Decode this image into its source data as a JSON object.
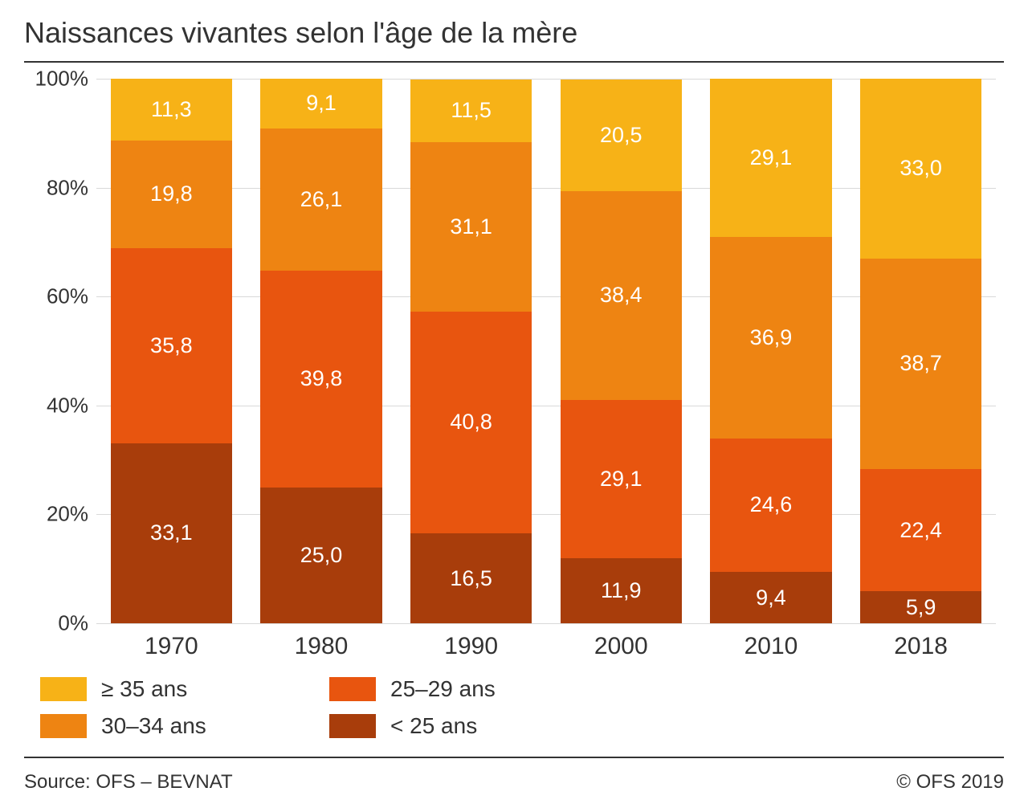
{
  "title": "Naissances vivantes selon l'âge de la mère",
  "chart": {
    "type": "stacked-bar-100",
    "background_color": "#ffffff",
    "grid_color": "#d9d9d9",
    "label_color": "#ffffff",
    "label_fontsize": 27,
    "axis_fontsize": 26,
    "xaxis_fontsize": 30,
    "y_ticks": [
      0,
      20,
      40,
      60,
      80,
      100
    ],
    "y_tick_labels": [
      "0%",
      "20%",
      "40%",
      "60%",
      "80%",
      "100%"
    ],
    "categories": [
      "1970",
      "1980",
      "1990",
      "2000",
      "2010",
      "2018"
    ],
    "series": [
      {
        "key": "lt25",
        "label": "< 25 ans",
        "color": "#a83d0b"
      },
      {
        "key": "a25_29",
        "label": "25–29 ans",
        "color": "#e8550f"
      },
      {
        "key": "a30_34",
        "label": "30–34 ans",
        "color": "#ee8412"
      },
      {
        "key": "ge35",
        "label": "≥ 35 ans",
        "color": "#f7b217"
      }
    ],
    "data": [
      {
        "lt25": 33.1,
        "a25_29": 35.8,
        "a30_34": 19.8,
        "ge35": 11.3
      },
      {
        "lt25": 25.0,
        "a25_29": 39.8,
        "a30_34": 26.1,
        "ge35": 9.1
      },
      {
        "lt25": 16.5,
        "a25_29": 40.8,
        "a30_34": 31.1,
        "ge35": 11.5
      },
      {
        "lt25": 11.9,
        "a25_29": 29.1,
        "a30_34": 38.4,
        "ge35": 20.5
      },
      {
        "lt25": 9.4,
        "a25_29": 24.6,
        "a30_34": 36.9,
        "ge35": 29.1
      },
      {
        "lt25": 5.9,
        "a25_29": 22.4,
        "a30_34": 38.7,
        "ge35": 33.0
      }
    ],
    "legend_order": [
      "ge35",
      "a25_29",
      "a30_34",
      "lt25"
    ]
  },
  "footer": {
    "source_prefix": "Source: ",
    "source": "OFS – BEVNAT",
    "copyright": "© OFS 2019"
  }
}
